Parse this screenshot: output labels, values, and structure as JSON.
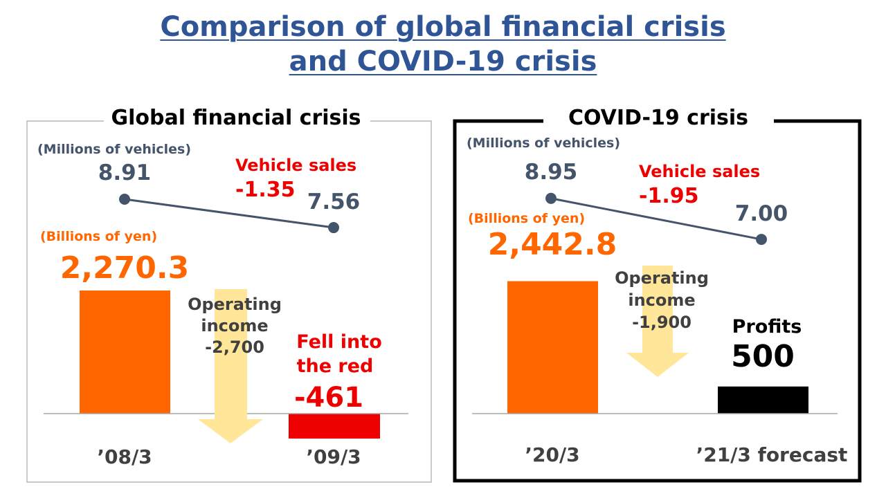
{
  "title_line1": "Comparison of global financial crisis",
  "title_line2": "and COVID-19 crisis",
  "colors": {
    "title": "#2F5597",
    "navy": "#44546A",
    "orange": "#FF6600",
    "red": "#EE0000",
    "arrow": "#FFE699",
    "black": "#000000",
    "frame_gray": "#A6A6A6"
  },
  "chart_data": [
    {
      "type": "bar",
      "title": "Global financial crisis",
      "categories": [
        "’08/3",
        "’09/3"
      ],
      "operating_income": {
        "unit_label": "(Billions of yen)",
        "values": [
          2270.3,
          -461
        ],
        "value_labels": [
          "2,270.3",
          "-461"
        ],
        "change_label": [
          "Operating",
          "income",
          "-2,700"
        ],
        "result_label": [
          "Fell into",
          "the red"
        ]
      },
      "vehicle_sales": {
        "unit_label": "(Millions of vehicles)",
        "values": [
          8.91,
          7.56
        ],
        "value_labels": [
          "8.91",
          "7.56"
        ],
        "change_label": [
          "Vehicle sales",
          "-1.35"
        ]
      }
    },
    {
      "type": "bar",
      "title": "COVID-19 crisis",
      "categories": [
        "’20/3",
        "’21/3 forecast"
      ],
      "operating_income": {
        "unit_label": "(Billions of yen)",
        "values": [
          2442.8,
          500
        ],
        "value_labels": [
          "2,442.8",
          "500"
        ],
        "change_label": [
          "Operating",
          "income",
          "-1,900"
        ],
        "result_label": [
          "Profits"
        ]
      },
      "vehicle_sales": {
        "unit_label": "(Millions of vehicles)",
        "values": [
          8.95,
          7.0
        ],
        "value_labels": [
          "8.95",
          "7.00"
        ],
        "change_label": [
          "Vehicle sales",
          "-1.95"
        ]
      }
    }
  ]
}
